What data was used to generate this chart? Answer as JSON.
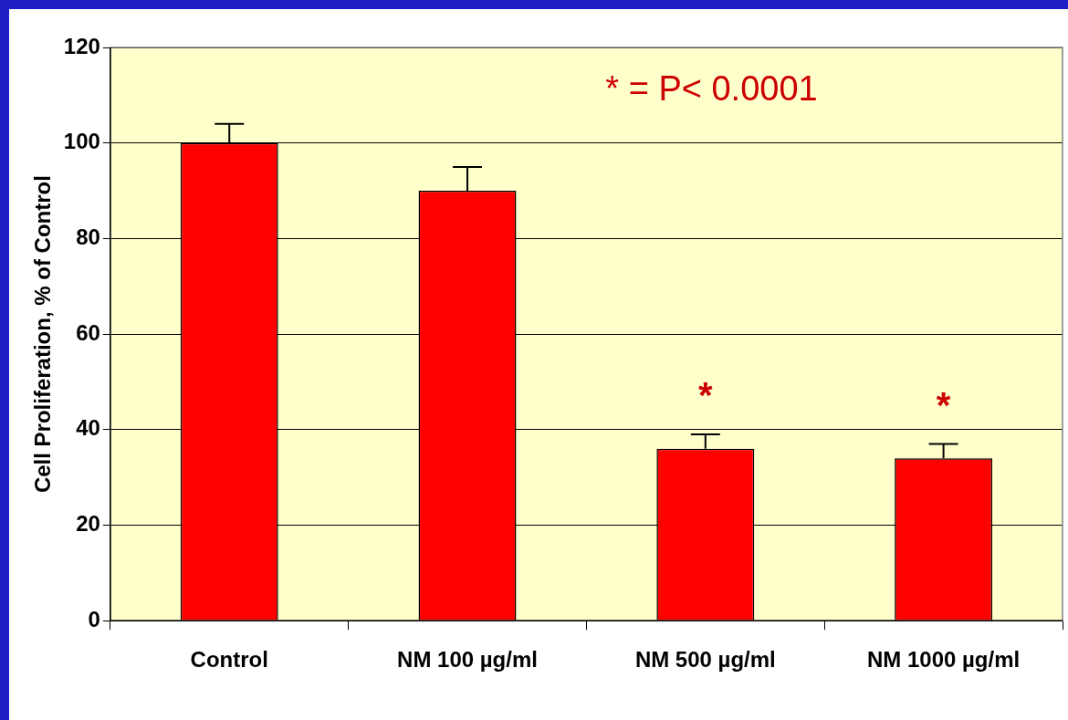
{
  "chart_data": {
    "type": "bar",
    "ylabel": "Cell Proliferation, % of Control",
    "categories": [
      "Control",
      "NM 100 µg/ml",
      "NM 500 µg/ml",
      "NM 1000 µg/ml"
    ],
    "values": [
      100,
      90,
      36,
      34
    ],
    "color": "#ff0000",
    "errors": [
      [
        100,
        104
      ],
      [
        90,
        95
      ],
      [
        36,
        39
      ],
      [
        34,
        37
      ]
    ],
    "ylim": [
      0,
      120
    ],
    "yticks": [
      0,
      20,
      40,
      60,
      80,
      100,
      120
    ],
    "grid": "y",
    "legend": false,
    "annotations": [
      "* = P< 0.0001",
      {
        "text": "*",
        "x": "NM 500 µg/ml",
        "y": 39
      },
      {
        "text": "*",
        "x": "NM 1000 µg/ml",
        "y": 37
      }
    ]
  }
}
